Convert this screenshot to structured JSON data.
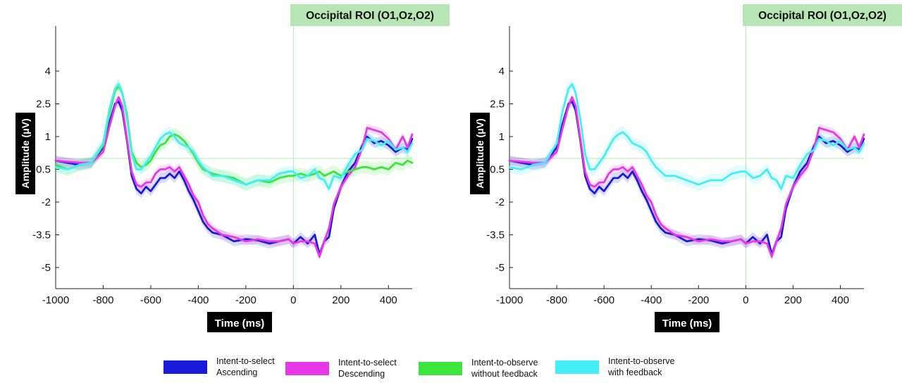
{
  "chart_data": [
    {
      "type": "line",
      "title": "Occipital ROI (O1,Oz,O2)",
      "xlabel": "Time (ms)",
      "ylabel": "Amplitude (μV)",
      "xlim": [
        -1000,
        500
      ],
      "ylim": [
        -6,
        6
      ],
      "xticks": [
        "-1000",
        "-800",
        "-600",
        "-400",
        "-200",
        "0",
        "200",
        "400"
      ],
      "yticks": [
        "4",
        "2.5",
        "1",
        "-0.5",
        "-2",
        "-3.5",
        "-5"
      ],
      "reference_lines": {
        "y": 0,
        "x": 0
      },
      "shaded_error_bands": true,
      "series": [
        {
          "name": "Intent-to-select Ascending",
          "color": "#1a1adb",
          "x": [
            -1000,
            -950,
            -900,
            -850,
            -800,
            -775,
            -750,
            -735,
            -720,
            -700,
            -680,
            -660,
            -640,
            -620,
            -600,
            -580,
            -560,
            -540,
            -520,
            -500,
            -480,
            -460,
            -440,
            -420,
            -400,
            -380,
            -360,
            -340,
            -300,
            -250,
            -200,
            -150,
            -100,
            -60,
            -20,
            0,
            30,
            60,
            90,
            110,
            130,
            150,
            170,
            200,
            230,
            260,
            290,
            310,
            340,
            370,
            400,
            430,
            460,
            480,
            500
          ],
          "y": [
            -0.1,
            -0.2,
            -0.3,
            -0.2,
            0.5,
            1.6,
            2.5,
            2.6,
            2.2,
            0.8,
            -0.8,
            -1.4,
            -1.6,
            -1.3,
            -1.5,
            -1.2,
            -0.9,
            -0.9,
            -0.7,
            -0.9,
            -0.6,
            -1.0,
            -1.5,
            -1.9,
            -2.4,
            -2.9,
            -3.2,
            -3.4,
            -3.5,
            -3.8,
            -3.7,
            -3.75,
            -3.9,
            -3.8,
            -3.7,
            -3.9,
            -3.6,
            -3.9,
            -3.5,
            -4.4,
            -3.8,
            -3.6,
            -2.3,
            -1.3,
            -0.6,
            -0.2,
            0.6,
            1.0,
            0.7,
            0.8,
            0.6,
            0.3,
            0.5,
            0.4,
            0.9
          ]
        },
        {
          "name": "Intent-to-select Descending",
          "color": "#e838e6",
          "x": [
            -1000,
            -950,
            -900,
            -850,
            -800,
            -775,
            -750,
            -735,
            -720,
            -700,
            -680,
            -660,
            -640,
            -620,
            -600,
            -580,
            -560,
            -540,
            -520,
            -500,
            -480,
            -460,
            -440,
            -420,
            -400,
            -380,
            -360,
            -340,
            -300,
            -250,
            -200,
            -150,
            -100,
            -60,
            -20,
            0,
            30,
            60,
            90,
            110,
            130,
            150,
            170,
            200,
            230,
            260,
            290,
            310,
            340,
            370,
            400,
            430,
            460,
            480,
            500
          ],
          "y": [
            -0.1,
            -0.15,
            -0.2,
            -0.2,
            0.3,
            1.4,
            2.4,
            2.8,
            2.4,
            0.9,
            -0.6,
            -1.2,
            -1.3,
            -1.1,
            -1.1,
            -0.7,
            -0.5,
            -0.5,
            -0.4,
            -0.6,
            -0.4,
            -0.8,
            -1.2,
            -1.7,
            -2.0,
            -2.6,
            -3.0,
            -3.2,
            -3.5,
            -3.6,
            -3.8,
            -3.7,
            -3.8,
            -3.8,
            -3.7,
            -3.9,
            -3.8,
            -3.8,
            -3.9,
            -4.5,
            -3.8,
            -3.2,
            -2.1,
            -1.3,
            -0.8,
            -0.4,
            0.5,
            1.4,
            1.3,
            1.2,
            0.9,
            0.4,
            1.0,
            0.5,
            1.1
          ]
        },
        {
          "name": "Intent-to-observe without feedback",
          "color": "#3ce53c",
          "x": [
            -1000,
            -950,
            -900,
            -850,
            -800,
            -775,
            -750,
            -735,
            -720,
            -700,
            -680,
            -660,
            -640,
            -620,
            -600,
            -580,
            -560,
            -540,
            -520,
            -500,
            -480,
            -460,
            -440,
            -420,
            -400,
            -380,
            -360,
            -340,
            -300,
            -250,
            -200,
            -150,
            -100,
            -60,
            -20,
            0,
            30,
            60,
            90,
            110,
            130,
            150,
            170,
            200,
            230,
            260,
            290,
            310,
            340,
            370,
            400,
            430,
            460,
            480,
            500
          ],
          "y": [
            -0.3,
            -0.5,
            -0.3,
            -0.2,
            0.6,
            2.0,
            3.1,
            3.3,
            3.0,
            2.0,
            0.3,
            -0.2,
            -0.4,
            -0.3,
            -0.1,
            0.3,
            0.6,
            0.7,
            1.0,
            1.1,
            1.0,
            0.8,
            0.5,
            0.2,
            -0.2,
            -0.5,
            -0.6,
            -0.7,
            -0.8,
            -0.9,
            -1.2,
            -1.0,
            -1.1,
            -0.9,
            -0.8,
            -0.8,
            -0.7,
            -0.8,
            -0.7,
            -0.6,
            -0.8,
            -0.7,
            -0.6,
            -0.8,
            -0.6,
            -0.5,
            -0.4,
            -0.4,
            -0.5,
            -0.4,
            -0.5,
            -0.2,
            -0.3,
            -0.1,
            -0.2
          ]
        },
        {
          "name": "Intent-to-observe with feedback",
          "color": "#44eef7",
          "x": [
            -1000,
            -950,
            -900,
            -850,
            -800,
            -775,
            -750,
            -735,
            -720,
            -700,
            -680,
            -660,
            -640,
            -620,
            -600,
            -580,
            -560,
            -540,
            -520,
            -500,
            -480,
            -460,
            -440,
            -420,
            -400,
            -380,
            -360,
            -340,
            -300,
            -250,
            -200,
            -150,
            -100,
            -60,
            -20,
            0,
            30,
            60,
            90,
            110,
            130,
            150,
            170,
            200,
            230,
            260,
            290,
            310,
            340,
            370,
            400,
            430,
            460,
            480,
            500
          ],
          "y": [
            -0.4,
            -0.5,
            -0.3,
            -0.2,
            0.7,
            2.2,
            3.2,
            3.4,
            3.0,
            1.8,
            0.2,
            -0.5,
            -0.5,
            -0.2,
            0.1,
            0.5,
            0.9,
            1.1,
            1.2,
            1.0,
            0.7,
            0.6,
            0.5,
            0.3,
            -0.1,
            -0.4,
            -0.6,
            -0.8,
            -0.8,
            -1.0,
            -1.2,
            -1.0,
            -1.0,
            -0.7,
            -0.6,
            -0.6,
            -0.9,
            -0.8,
            -0.5,
            -0.9,
            -1.0,
            -1.4,
            -0.8,
            -0.9,
            -0.3,
            0.2,
            0.4,
            0.9,
            0.8,
            0.6,
            0.8,
            0.4,
            0.5,
            0.3,
            0.7
          ]
        }
      ]
    },
    {
      "type": "line",
      "title": "Occipital ROI (O1,Oz,O2)",
      "xlabel": "Time (ms)",
      "ylabel": "Amplitude (μV)",
      "xlim": [
        -1000,
        500
      ],
      "ylim": [
        -6,
        6
      ],
      "xticks": [
        "-1000",
        "-800",
        "-600",
        "-400",
        "-200",
        "0",
        "200",
        "400"
      ],
      "yticks": [
        "4",
        "2.5",
        "1",
        "-0.5",
        "-2",
        "-3.5",
        "-5"
      ],
      "reference_lines": {
        "y": 0,
        "x": 0
      },
      "shaded_error_bands": true,
      "series": [
        {
          "name": "Intent-to-select Ascending",
          "color": "#1a1adb",
          "x": [
            -1000,
            -950,
            -900,
            -850,
            -800,
            -775,
            -750,
            -735,
            -720,
            -700,
            -680,
            -660,
            -640,
            -620,
            -600,
            -580,
            -560,
            -540,
            -520,
            -500,
            -480,
            -460,
            -440,
            -420,
            -400,
            -380,
            -360,
            -340,
            -300,
            -250,
            -200,
            -150,
            -100,
            -60,
            -20,
            0,
            30,
            60,
            90,
            110,
            130,
            150,
            170,
            200,
            230,
            260,
            290,
            310,
            340,
            370,
            400,
            430,
            460,
            480,
            500
          ],
          "y": [
            -0.1,
            -0.2,
            -0.3,
            -0.2,
            0.5,
            1.6,
            2.5,
            2.6,
            2.2,
            0.8,
            -0.8,
            -1.4,
            -1.6,
            -1.3,
            -1.5,
            -1.2,
            -0.9,
            -0.9,
            -0.7,
            -0.9,
            -0.6,
            -1.0,
            -1.5,
            -1.9,
            -2.4,
            -2.9,
            -3.2,
            -3.4,
            -3.5,
            -3.8,
            -3.7,
            -3.75,
            -3.9,
            -3.8,
            -3.7,
            -3.9,
            -3.6,
            -3.9,
            -3.5,
            -4.4,
            -3.8,
            -3.6,
            -2.3,
            -1.3,
            -0.6,
            -0.2,
            0.6,
            1.0,
            0.7,
            0.8,
            0.6,
            0.3,
            0.5,
            0.4,
            0.9
          ]
        },
        {
          "name": "Intent-to-select Descending",
          "color": "#e838e6",
          "x": [
            -1000,
            -950,
            -900,
            -850,
            -800,
            -775,
            -750,
            -735,
            -720,
            -700,
            -680,
            -660,
            -640,
            -620,
            -600,
            -580,
            -560,
            -540,
            -520,
            -500,
            -480,
            -460,
            -440,
            -420,
            -400,
            -380,
            -360,
            -340,
            -300,
            -250,
            -200,
            -150,
            -100,
            -60,
            -20,
            0,
            30,
            60,
            90,
            110,
            130,
            150,
            170,
            200,
            230,
            260,
            290,
            310,
            340,
            370,
            400,
            430,
            460,
            480,
            500
          ],
          "y": [
            -0.1,
            -0.15,
            -0.2,
            -0.2,
            0.3,
            1.4,
            2.4,
            2.8,
            2.4,
            0.9,
            -0.6,
            -1.2,
            -1.3,
            -1.1,
            -1.1,
            -0.7,
            -0.5,
            -0.5,
            -0.4,
            -0.6,
            -0.4,
            -0.8,
            -1.2,
            -1.7,
            -2.0,
            -2.6,
            -3.0,
            -3.2,
            -3.5,
            -3.6,
            -3.8,
            -3.7,
            -3.8,
            -3.8,
            -3.7,
            -3.9,
            -3.8,
            -3.8,
            -3.9,
            -4.5,
            -3.8,
            -3.2,
            -2.1,
            -1.3,
            -0.8,
            -0.4,
            0.5,
            1.4,
            1.3,
            1.2,
            0.9,
            0.4,
            1.0,
            0.5,
            1.1
          ]
        },
        {
          "name": "Intent-to-observe with feedback",
          "color": "#44eef7",
          "x": [
            -1000,
            -950,
            -900,
            -850,
            -800,
            -775,
            -750,
            -735,
            -720,
            -700,
            -680,
            -660,
            -640,
            -620,
            -600,
            -580,
            -560,
            -540,
            -520,
            -500,
            -480,
            -460,
            -440,
            -420,
            -400,
            -380,
            -360,
            -340,
            -300,
            -250,
            -200,
            -150,
            -100,
            -60,
            -20,
            0,
            30,
            60,
            90,
            110,
            130,
            150,
            170,
            200,
            230,
            260,
            290,
            310,
            340,
            370,
            400,
            430,
            460,
            480,
            500
          ],
          "y": [
            -0.4,
            -0.5,
            -0.3,
            -0.2,
            0.7,
            2.2,
            3.2,
            3.4,
            3.0,
            1.8,
            0.2,
            -0.5,
            -0.5,
            -0.2,
            0.1,
            0.5,
            0.9,
            1.1,
            1.2,
            1.0,
            0.7,
            0.6,
            0.5,
            0.3,
            -0.1,
            -0.4,
            -0.6,
            -0.8,
            -0.8,
            -1.0,
            -1.2,
            -1.0,
            -1.0,
            -0.7,
            -0.6,
            -0.6,
            -0.9,
            -0.8,
            -0.5,
            -0.9,
            -1.0,
            -1.4,
            -0.8,
            -0.9,
            -0.3,
            0.2,
            0.4,
            0.9,
            0.8,
            0.6,
            0.8,
            0.4,
            0.5,
            0.3,
            0.7
          ]
        }
      ]
    }
  ],
  "legend": {
    "items": [
      {
        "line1": "Intent-to-select",
        "line2": "Ascending",
        "color": "#1a1adb"
      },
      {
        "line1": "Intent-to-select",
        "line2": "Descending",
        "color": "#e838e6"
      },
      {
        "line1": "Intent-to-observe",
        "line2": "without feedback",
        "color": "#3ce53c"
      },
      {
        "line1": "Intent-to-observe",
        "line2": "with feedback",
        "color": "#44eef7"
      }
    ]
  }
}
